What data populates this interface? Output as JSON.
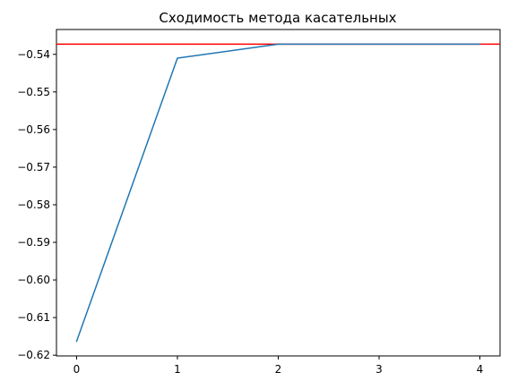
{
  "chart_data": {
    "type": "line",
    "title": "Сходимость метода касательных",
    "xlabel": "",
    "ylabel": "",
    "x": [
      0,
      1,
      2,
      3,
      4
    ],
    "series": [
      {
        "values": [
          -0.6163,
          -0.541,
          -0.5373,
          -0.5373,
          -0.5373
        ],
        "color": "#1f77b4"
      }
    ],
    "reference_line": {
      "orientation": "horizontal",
      "y": -0.5373,
      "color": "#ff0000"
    },
    "xlim": [
      -0.2,
      4.2
    ],
    "ylim": [
      -0.6202,
      -0.5334
    ],
    "x_ticks": [
      0,
      1,
      2,
      3,
      4
    ],
    "y_ticks": [
      -0.54,
      -0.55,
      -0.56,
      -0.57,
      -0.58,
      -0.59,
      -0.6,
      -0.61,
      -0.62
    ],
    "x_tick_labels": [
      "0",
      "1",
      "2",
      "3",
      "4"
    ],
    "y_tick_labels": [
      "−0.54",
      "−0.55",
      "−0.56",
      "−0.57",
      "−0.58",
      "−0.59",
      "−0.60",
      "−0.61",
      "−0.62"
    ],
    "grid": false,
    "legend": "none"
  }
}
